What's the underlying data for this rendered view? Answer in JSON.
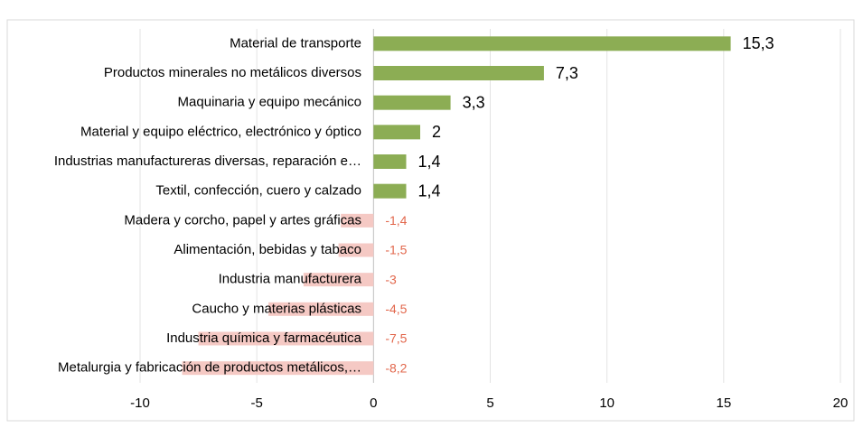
{
  "chart_data": {
    "type": "hbar",
    "categories": [
      "Material de transporte",
      "Productos minerales no metálicos diversos",
      "Maquinaria y equipo mecánico",
      "Material y equipo eléctrico, electrónico y óptico",
      "Industrias manufactureras diversas, reparación e…",
      "Textil, confección, cuero y calzado",
      "Madera y corcho, papel y artes gráficas",
      "Alimentación, bebidas y tabaco",
      "Industria manufacturera",
      "Caucho y materias plásticas",
      "Industria química y farmacéutica",
      "Metalurgia y fabricación de productos metálicos,…"
    ],
    "values": [
      15.3,
      7.3,
      3.3,
      2,
      1.4,
      1.4,
      -1.4,
      -1.5,
      -3,
      -4.5,
      -7.5,
      -8.2
    ],
    "value_labels": [
      "15,3",
      "7,3",
      "3,3",
      "2",
      "1,4",
      "1,4",
      "-1,4",
      "-1,5",
      "-3",
      "-4,5",
      "-7,5",
      "-8,2"
    ],
    "positive_color": "#8cad54",
    "negative_color": "#f5c9c4",
    "positive_label_color": "#000000",
    "negative_label_color": "#e2674c",
    "xlim": [
      -10,
      20
    ],
    "xticks": [
      -10,
      -5,
      0,
      5,
      10,
      15,
      20
    ],
    "grid": true
  }
}
